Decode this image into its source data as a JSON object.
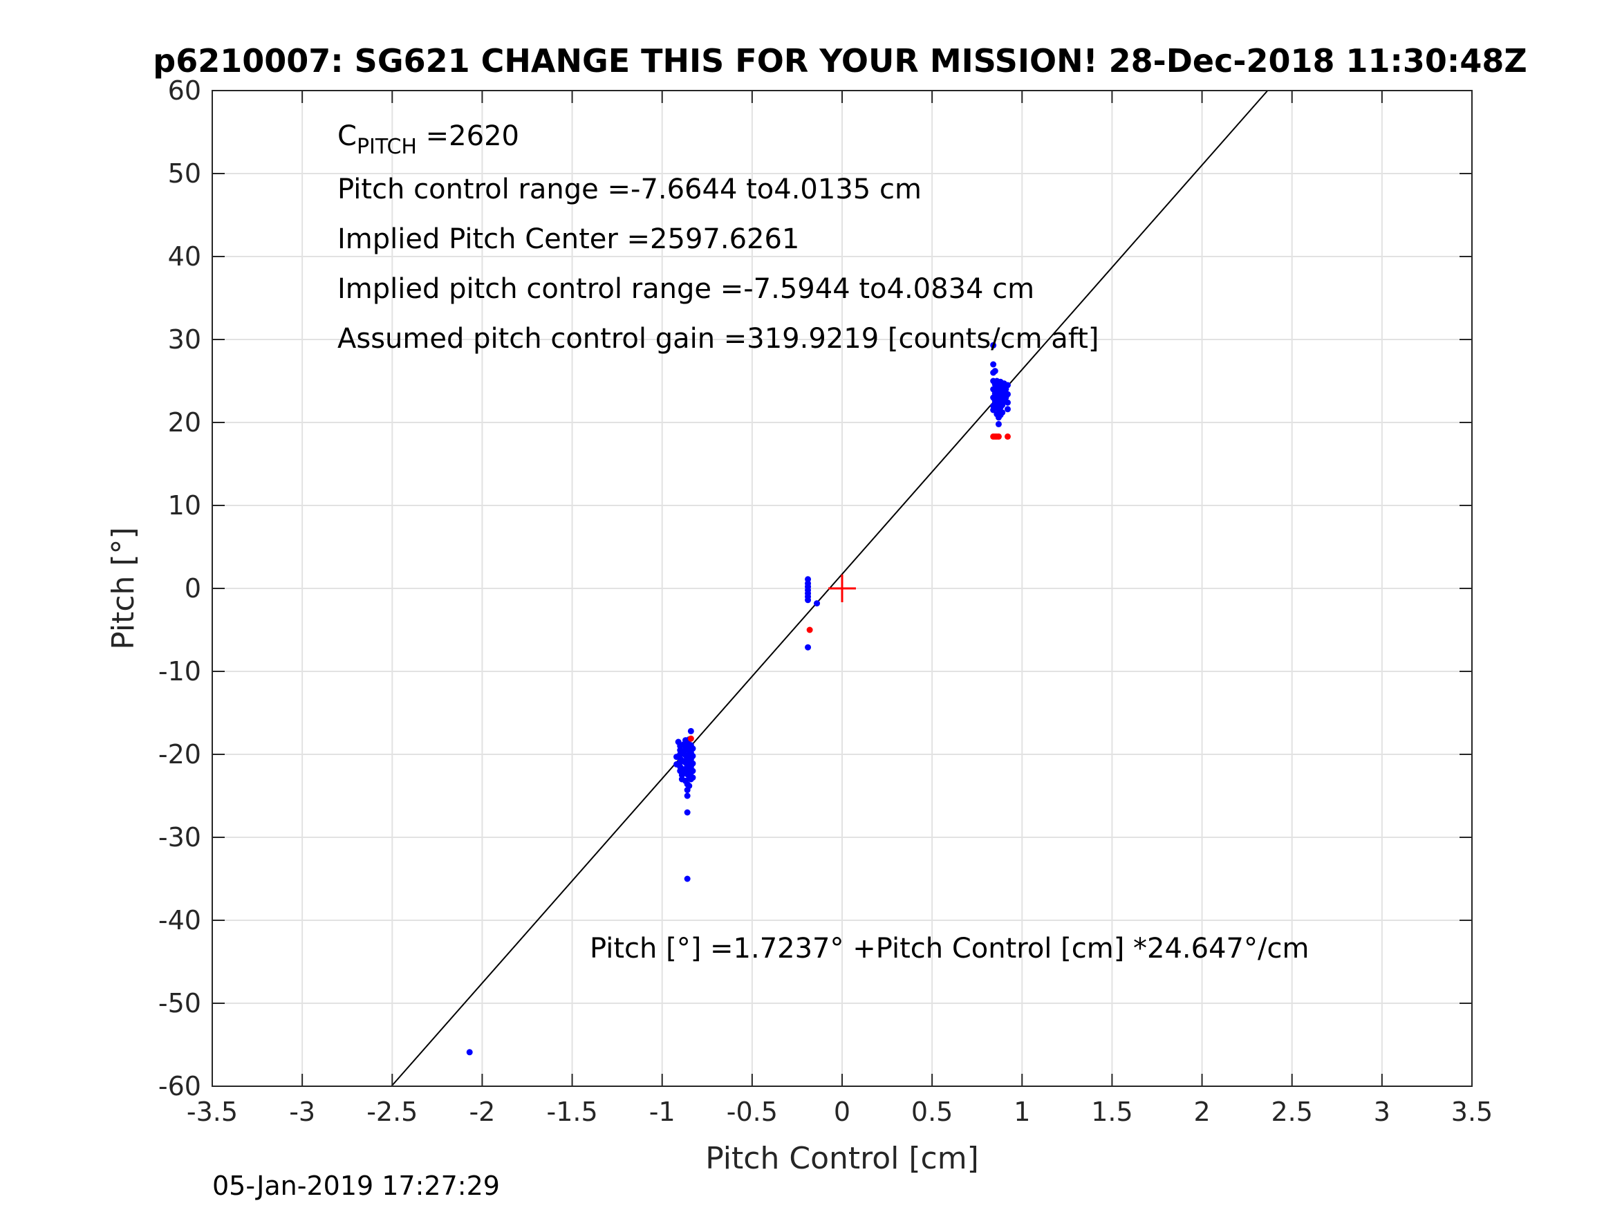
{
  "chart_data": {
    "type": "scatter",
    "title": "p6210007: SG621 CHANGE THIS FOR YOUR MISSION! 28-Dec-2018 11:30:48Z",
    "xlabel": "Pitch Control [cm]",
    "ylabel": "Pitch [°]",
    "xlim": [
      -3.5,
      3.5
    ],
    "ylim": [
      -60,
      60
    ],
    "xticks": [
      -3.5,
      -3,
      -2.5,
      -2,
      -1.5,
      -1,
      -0.5,
      0,
      0.5,
      1,
      1.5,
      2,
      2.5,
      3,
      3.5
    ],
    "xtick_labels": [
      "-3.5",
      "-3",
      "-2.5",
      "-2",
      "-1.5",
      "-1",
      "-0.5",
      "0",
      "0.5",
      "1",
      "1.5",
      "2",
      "2.5",
      "3",
      "3.5"
    ],
    "yticks": [
      -60,
      -50,
      -40,
      -30,
      -20,
      -10,
      0,
      10,
      20,
      30,
      40,
      50,
      60
    ],
    "ytick_labels": [
      "-60",
      "-50",
      "-40",
      "-30",
      "-20",
      "-10",
      "0",
      "10",
      "20",
      "30",
      "40",
      "50",
      "60"
    ],
    "grid": true,
    "annotations": {
      "c_pitch_main": "C",
      "c_pitch_sub": "PITCH",
      "c_pitch_value": " =2620",
      "line2": "Pitch control range =-7.6644 to4.0135 cm",
      "line3": "Implied Pitch Center =2597.6261",
      "line4": "Implied pitch control range =-7.5944 to4.0834 cm",
      "line5": "Assumed pitch control gain =319.9219 [counts/cm aft]",
      "fit_equation": "Pitch [°] =1.7237° +Pitch Control [cm] *24.647°/cm"
    },
    "fit_line": {
      "intercept": 1.7237,
      "slope": 24.647,
      "color": "#000000"
    },
    "center_marker": {
      "x": 0,
      "y": 0,
      "color": "#ff0000"
    },
    "series": [
      {
        "color": "#0000ff",
        "points": [
          [
            -0.91,
            -18.5
          ],
          [
            -0.9,
            -19.0
          ],
          [
            -0.9,
            -19.5
          ],
          [
            -0.9,
            -20.0
          ],
          [
            -0.9,
            -20.5
          ],
          [
            -0.9,
            -21.0
          ],
          [
            -0.9,
            -21.5
          ],
          [
            -0.9,
            -22.0
          ],
          [
            -0.92,
            -20.3
          ],
          [
            -0.92,
            -21.2
          ],
          [
            -0.89,
            -22.5
          ],
          [
            -0.89,
            -23.0
          ],
          [
            -0.88,
            -18.8
          ],
          [
            -0.88,
            -19.6
          ],
          [
            -0.88,
            -20.8
          ],
          [
            -0.88,
            -21.8
          ],
          [
            -0.87,
            -18.3
          ],
          [
            -0.87,
            -19.2
          ],
          [
            -0.87,
            -20.1
          ],
          [
            -0.87,
            -21.0
          ],
          [
            -0.87,
            -22.0
          ],
          [
            -0.87,
            -23.2
          ],
          [
            -0.86,
            -18.6
          ],
          [
            -0.86,
            -19.4
          ],
          [
            -0.86,
            -20.4
          ],
          [
            -0.86,
            -21.4
          ],
          [
            -0.86,
            -22.4
          ],
          [
            -0.86,
            -23.6
          ],
          [
            -0.86,
            -24.3
          ],
          [
            -0.86,
            -25.0
          ],
          [
            -0.85,
            -18.2
          ],
          [
            -0.85,
            -19.1
          ],
          [
            -0.85,
            -20.0
          ],
          [
            -0.85,
            -20.9
          ],
          [
            -0.85,
            -21.8
          ],
          [
            -0.85,
            -22.7
          ],
          [
            -0.85,
            -23.8
          ],
          [
            -0.84,
            -18.9
          ],
          [
            -0.84,
            -19.8
          ],
          [
            -0.84,
            -20.6
          ],
          [
            -0.84,
            -21.5
          ],
          [
            -0.84,
            -22.2
          ],
          [
            -0.84,
            -23.0
          ],
          [
            -0.83,
            -19.3
          ],
          [
            -0.83,
            -20.2
          ],
          [
            -0.83,
            -21.1
          ],
          [
            -0.83,
            -22.0
          ],
          [
            -0.83,
            -22.8
          ],
          [
            -0.84,
            -17.2
          ],
          [
            -0.86,
            -27.0
          ],
          [
            -0.86,
            -35.0
          ],
          [
            -0.19,
            1.1
          ],
          [
            -0.19,
            0.6
          ],
          [
            -0.19,
            0.2
          ],
          [
            -0.19,
            -0.2
          ],
          [
            -0.19,
            -0.6
          ],
          [
            -0.19,
            -1.0
          ],
          [
            -0.19,
            -1.4
          ],
          [
            -0.14,
            -1.8
          ],
          [
            -0.19,
            -7.1
          ],
          [
            -2.07,
            -55.9
          ],
          [
            0.84,
            29.3
          ],
          [
            0.84,
            27.0
          ],
          [
            0.84,
            26.0
          ],
          [
            0.84,
            25.0
          ],
          [
            0.84,
            24.0
          ],
          [
            0.84,
            23.0
          ],
          [
            0.84,
            22.0
          ],
          [
            0.84,
            21.5
          ],
          [
            0.85,
            26.2
          ],
          [
            0.85,
            24.6
          ],
          [
            0.85,
            23.5
          ],
          [
            0.85,
            22.6
          ],
          [
            0.85,
            21.8
          ],
          [
            0.86,
            25.0
          ],
          [
            0.86,
            24.0
          ],
          [
            0.86,
            23.0
          ],
          [
            0.86,
            22.2
          ],
          [
            0.86,
            21.0
          ],
          [
            0.87,
            24.5
          ],
          [
            0.87,
            23.4
          ],
          [
            0.87,
            22.4
          ],
          [
            0.87,
            21.6
          ],
          [
            0.87,
            20.6
          ],
          [
            0.87,
            19.8
          ],
          [
            0.88,
            24.9
          ],
          [
            0.88,
            23.8
          ],
          [
            0.88,
            22.8
          ],
          [
            0.88,
            21.8
          ],
          [
            0.88,
            20.9
          ],
          [
            0.89,
            24.3
          ],
          [
            0.89,
            23.2
          ],
          [
            0.89,
            22.1
          ],
          [
            0.89,
            21.2
          ],
          [
            0.9,
            24.7
          ],
          [
            0.9,
            23.6
          ],
          [
            0.9,
            22.5
          ],
          [
            0.91,
            24.0
          ],
          [
            0.91,
            23.0
          ],
          [
            0.92,
            24.5
          ],
          [
            0.92,
            23.4
          ],
          [
            0.92,
            22.4
          ],
          [
            0.92,
            21.6
          ]
        ]
      },
      {
        "color": "#ff0000",
        "points": [
          [
            0.84,
            18.3
          ],
          [
            0.85,
            18.3
          ],
          [
            0.86,
            18.3
          ],
          [
            0.87,
            18.3
          ],
          [
            0.92,
            18.3
          ],
          [
            -0.18,
            -5.0
          ],
          [
            -0.84,
            -18.1
          ]
        ]
      }
    ]
  },
  "footer": {
    "timestamp": "05-Jan-2019 17:27:29"
  }
}
